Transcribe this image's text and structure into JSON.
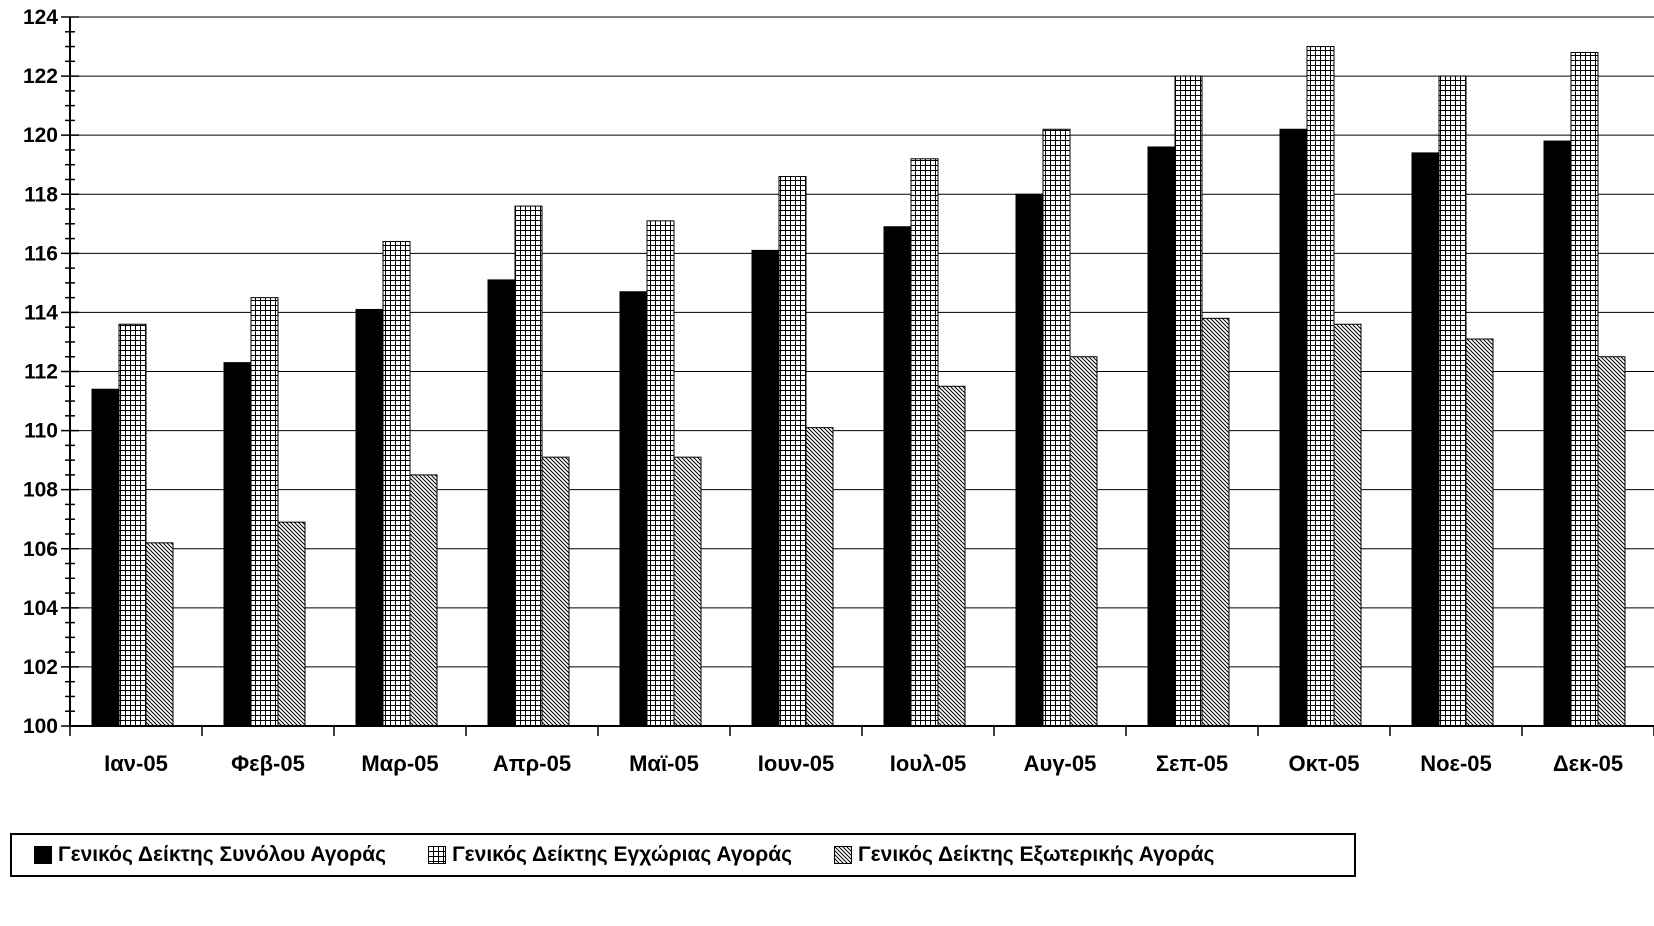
{
  "chart_data": {
    "type": "bar",
    "title": "",
    "xlabel": "",
    "ylabel": "",
    "ylim": [
      100,
      124
    ],
    "y_major_step": 2,
    "y_minor_step": 0.5,
    "y_ticks": [
      "100",
      "102",
      "104",
      "106",
      "108",
      "110",
      "112",
      "114",
      "116",
      "118",
      "120",
      "122",
      "124"
    ],
    "grid": true,
    "legend_position": "bottom",
    "categories": [
      "Ιαν-05",
      "Φεβ-05",
      "Μαρ-05",
      "Απρ-05",
      "Μαϊ-05",
      "Ιουν-05",
      "Ιουλ-05",
      "Αυγ-05",
      "Σεπ-05",
      "Οκτ-05",
      "Νοε-05",
      "Δεκ-05"
    ],
    "series": [
      {
        "name": "Γενικός Δείκτης Συνόλου Αγοράς",
        "pattern": "solid",
        "color": "#000000",
        "values": [
          111.4,
          112.3,
          114.1,
          115.1,
          114.7,
          116.1,
          116.9,
          118.0,
          119.6,
          120.2,
          119.4,
          119.8
        ]
      },
      {
        "name": "Γενικός Δείκτης Εγχώριας Αγοράς",
        "pattern": "grid",
        "color": "#000000",
        "values": [
          113.6,
          114.5,
          116.4,
          117.6,
          117.1,
          118.6,
          119.2,
          120.2,
          122.0,
          123.0,
          122.0,
          122.8
        ]
      },
      {
        "name": "Γενικός Δείκτης Εξωτερικής Αγοράς",
        "pattern": "diagonal",
        "color": "#000000",
        "values": [
          106.2,
          106.9,
          108.5,
          109.1,
          109.1,
          110.1,
          111.5,
          112.5,
          113.8,
          113.6,
          113.1,
          112.5
        ]
      }
    ]
  }
}
